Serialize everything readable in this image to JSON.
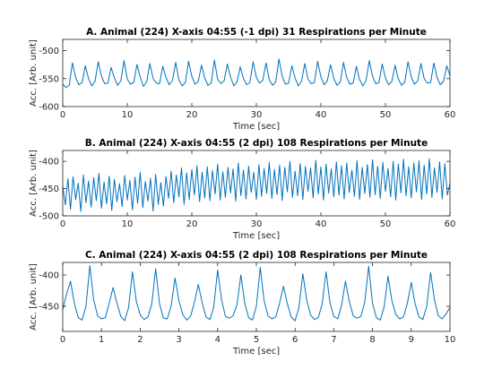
{
  "chart_data": [
    {
      "type": "line",
      "title": "A. Animal (224) X-axis 04:55 (-1 dpi) 31 Respirations per Minute",
      "x_label": "Time [sec]",
      "y_label": "Acc. [Arb. unit]",
      "color": "#0072bd",
      "xlim": [
        0,
        60
      ],
      "xticks": [
        0,
        10,
        20,
        30,
        40,
        50,
        60
      ],
      "ylim": [
        -600,
        -480
      ],
      "yticks": [
        -600,
        -550,
        -500
      ],
      "x": [
        0,
        0.5,
        1,
        1.5,
        2,
        2.5,
        3,
        3.5,
        4,
        4.5,
        5,
        5.5,
        6,
        6.5,
        7,
        7.5,
        8,
        8.5,
        9,
        9.5,
        10,
        10.5,
        11,
        11.5,
        12,
        12.5,
        13,
        13.5,
        14,
        14.5,
        15,
        15.5,
        16,
        16.5,
        17,
        17.5,
        18,
        18.5,
        19,
        19.5,
        20,
        20.5,
        21,
        21.5,
        22,
        22.5,
        23,
        23.5,
        24,
        24.5,
        25,
        25.5,
        26,
        26.5,
        27,
        27.5,
        28,
        28.5,
        29,
        29.5,
        30,
        30.5,
        31,
        31.5,
        32,
        32.5,
        33,
        33.5,
        34,
        34.5,
        35,
        35.5,
        36,
        36.5,
        37,
        37.5,
        38,
        38.5,
        39,
        39.5,
        40,
        40.5,
        41,
        41.5,
        42,
        42.5,
        43,
        43.5,
        44,
        44.5,
        45,
        45.5,
        46,
        46.5,
        47,
        47.5,
        48,
        48.5,
        49,
        49.5,
        50,
        50.5,
        51,
        51.5,
        52,
        52.5,
        53,
        53.5,
        54,
        54.5,
        55,
        55.5,
        56,
        56.5,
        57,
        57.5,
        58,
        58.5,
        59,
        59.5,
        60
      ],
      "values": [
        -560,
        -566,
        -562,
        -522,
        -548,
        -561,
        -557,
        -527,
        -550,
        -563,
        -555,
        -520,
        -546,
        -559,
        -558,
        -530,
        -549,
        -562,
        -554,
        -518,
        -551,
        -560,
        -557,
        -525,
        -547,
        -564,
        -556,
        -523,
        -550,
        -558,
        -559,
        -528,
        -548,
        -561,
        -553,
        -521,
        -552,
        -563,
        -557,
        -519,
        -546,
        -560,
        -555,
        -526,
        -549,
        -562,
        -558,
        -517,
        -551,
        -559,
        -554,
        -524,
        -547,
        -563,
        -556,
        -529,
        -550,
        -561,
        -557,
        -520,
        -548,
        -558,
        -553,
        -522,
        -552,
        -562,
        -556,
        -515,
        -546,
        -560,
        -558,
        -527,
        -549,
        -563,
        -555,
        -523,
        -551,
        -559,
        -557,
        -519,
        -547,
        -561,
        -554,
        -525,
        -550,
        -562,
        -556,
        -521,
        -548,
        -560,
        -558,
        -528,
        -552,
        -563,
        -553,
        -518,
        -546,
        -559,
        -557,
        -524,
        -549,
        -561,
        -555,
        -526,
        -551,
        -562,
        -556,
        -520,
        -547,
        -560,
        -554,
        -523,
        -550,
        -558,
        -557,
        -522,
        -548,
        -561,
        -555,
        -527,
        -545
      ]
    },
    {
      "type": "line",
      "title": "B. Animal (224) X-axis 04:55 (2 dpi) 108 Respirations per Minute",
      "x_label": "Time [sec]",
      "y_label": "Acc. [Arb. unit]",
      "color": "#0072bd",
      "xlim": [
        0,
        60
      ],
      "xticks": [
        0,
        10,
        20,
        30,
        40,
        50,
        60
      ],
      "ylim": [
        -500,
        -380
      ],
      "yticks": [
        -500,
        -450,
        -400
      ],
      "x": [
        0,
        0.4,
        0.8,
        1.2,
        1.6,
        2,
        2.4,
        2.8,
        3.2,
        3.6,
        4,
        4.4,
        4.8,
        5.2,
        5.6,
        6,
        6.4,
        6.8,
        7.2,
        7.6,
        8,
        8.4,
        8.8,
        9.2,
        9.6,
        10,
        10.4,
        10.8,
        11.2,
        11.6,
        12,
        12.4,
        12.8,
        13.2,
        13.6,
        14,
        14.4,
        14.8,
        15.2,
        15.6,
        16,
        16.4,
        16.8,
        17.2,
        17.6,
        18,
        18.4,
        18.8,
        19.2,
        19.6,
        20,
        20.4,
        20.8,
        21.2,
        21.6,
        22,
        22.4,
        22.8,
        23.2,
        23.6,
        24,
        24.4,
        24.8,
        25.2,
        25.6,
        26,
        26.4,
        26.8,
        27.2,
        27.6,
        28,
        28.4,
        28.8,
        29.2,
        29.6,
        30,
        30.4,
        30.8,
        31.2,
        31.6,
        32,
        32.4,
        32.8,
        33.2,
        33.6,
        34,
        34.4,
        34.8,
        35.2,
        35.6,
        36,
        36.4,
        36.8,
        37.2,
        37.6,
        38,
        38.4,
        38.8,
        39.2,
        39.6,
        40,
        40.4,
        40.8,
        41.2,
        41.6,
        42,
        42.4,
        42.8,
        43.2,
        43.6,
        44,
        44.4,
        44.8,
        45.2,
        45.6,
        46,
        46.4,
        46.8,
        47.2,
        47.6,
        48,
        48.4,
        48.8,
        49.2,
        49.6,
        50,
        50.4,
        50.8,
        51.2,
        51.6,
        52,
        52.4,
        52.8,
        53.2,
        53.6,
        54,
        54.4,
        54.8,
        55.2,
        55.6,
        56,
        56.4,
        56.8,
        57.2,
        57.6,
        58,
        58.4,
        58.8,
        59.2,
        59.6,
        60
      ],
      "values": [
        -445,
        -480,
        -432,
        -488,
        -428,
        -470,
        -440,
        -492,
        -425,
        -476,
        -436,
        -484,
        -430,
        -472,
        -422,
        -486,
        -438,
        -478,
        -427,
        -490,
        -433,
        -474,
        -441,
        -483,
        -426,
        -471,
        -435,
        -489,
        -429,
        -477,
        -420,
        -485,
        -437,
        -473,
        -431,
        -491,
        -424,
        -479,
        -439,
        -482,
        -428,
        -468,
        -418,
        -476,
        -425,
        -465,
        -412,
        -479,
        -421,
        -470,
        -415,
        -462,
        -408,
        -474,
        -420,
        -467,
        -410,
        -472,
        -417,
        -460,
        -405,
        -471,
        -419,
        -466,
        -411,
        -458,
        -414,
        -473,
        -403,
        -463,
        -416,
        -469,
        -409,
        -457,
        -420,
        -470,
        -406,
        -464,
        -413,
        -459,
        -402,
        -468,
        -415,
        -461,
        -407,
        -472,
        -411,
        -456,
        -400,
        -466,
        -418,
        -463,
        -404,
        -470,
        -409,
        -455,
        -412,
        -467,
        -398,
        -460,
        -410,
        -471,
        -405,
        -458,
        -414,
        -465,
        -401,
        -462,
        -408,
        -469,
        -403,
        -457,
        -416,
        -464,
        -399,
        -470,
        -411,
        -459,
        -406,
        -466,
        -397,
        -461,
        -409,
        -468,
        -402,
        -455,
        -413,
        -465,
        -400,
        -471,
        -405,
        -458,
        -396,
        -463,
        -410,
        -467,
        -403,
        -456,
        -399,
        -470,
        -407,
        -460,
        -395,
        -466,
        -412,
        -457,
        -401,
        -469,
        -404,
        -462,
        -440
      ]
    },
    {
      "type": "line",
      "title": "C. Animal (224) X-axis 04:55 (2 dpi) 108 Respirations per Minute",
      "x_label": "Time [sec]",
      "y_label": "Acc. [Arb. unit]",
      "color": "#0072bd",
      "xlim": [
        0,
        10
      ],
      "xticks": [
        0,
        1,
        2,
        3,
        4,
        5,
        6,
        7,
        8,
        9,
        10
      ],
      "ylim": [
        -490,
        -380
      ],
      "yticks": [
        -450,
        -400
      ],
      "x": [
        0,
        0.1,
        0.2,
        0.3,
        0.4,
        0.5,
        0.6,
        0.7,
        0.8,
        0.9,
        1,
        1.1,
        1.2,
        1.3,
        1.4,
        1.5,
        1.6,
        1.7,
        1.8,
        1.9,
        2,
        2.1,
        2.2,
        2.3,
        2.4,
        2.5,
        2.6,
        2.7,
        2.8,
        2.9,
        3,
        3.1,
        3.2,
        3.3,
        3.4,
        3.5,
        3.6,
        3.7,
        3.8,
        3.9,
        4,
        4.1,
        4.2,
        4.3,
        4.4,
        4.5,
        4.6,
        4.7,
        4.8,
        4.9,
        5,
        5.1,
        5.2,
        5.3,
        5.4,
        5.5,
        5.6,
        5.7,
        5.8,
        5.9,
        6,
        6.1,
        6.2,
        6.3,
        6.4,
        6.5,
        6.6,
        6.7,
        6.8,
        6.9,
        7,
        7.1,
        7.2,
        7.3,
        7.4,
        7.5,
        7.6,
        7.7,
        7.8,
        7.9,
        8,
        8.1,
        8.2,
        8.3,
        8.4,
        8.5,
        8.6,
        8.7,
        8.8,
        8.9,
        9,
        9.1,
        9.2,
        9.3,
        9.4,
        9.5,
        9.6,
        9.7,
        9.8,
        9.9,
        10
      ],
      "values": [
        -455,
        -430,
        -410,
        -445,
        -468,
        -472,
        -450,
        -385,
        -440,
        -465,
        -470,
        -468,
        -445,
        -420,
        -445,
        -466,
        -473,
        -452,
        -395,
        -442,
        -464,
        -471,
        -467,
        -446,
        -390,
        -446,
        -469,
        -470,
        -449,
        -405,
        -441,
        -463,
        -472,
        -466,
        -444,
        -415,
        -444,
        -467,
        -471,
        -451,
        -392,
        -439,
        -466,
        -469,
        -465,
        -447,
        -400,
        -445,
        -468,
        -472,
        -450,
        -388,
        -441,
        -465,
        -470,
        -467,
        -445,
        -418,
        -446,
        -467,
        -473,
        -452,
        -398,
        -440,
        -464,
        -471,
        -468,
        -446,
        -395,
        -444,
        -466,
        -470,
        -449,
        -410,
        -442,
        -465,
        -469,
        -466,
        -443,
        -386,
        -445,
        -468,
        -472,
        -451,
        -402,
        -441,
        -463,
        -470,
        -467,
        -445,
        -412,
        -446,
        -467,
        -471,
        -450,
        -396,
        -440,
        -465,
        -470,
        -462,
        -452
      ]
    }
  ]
}
